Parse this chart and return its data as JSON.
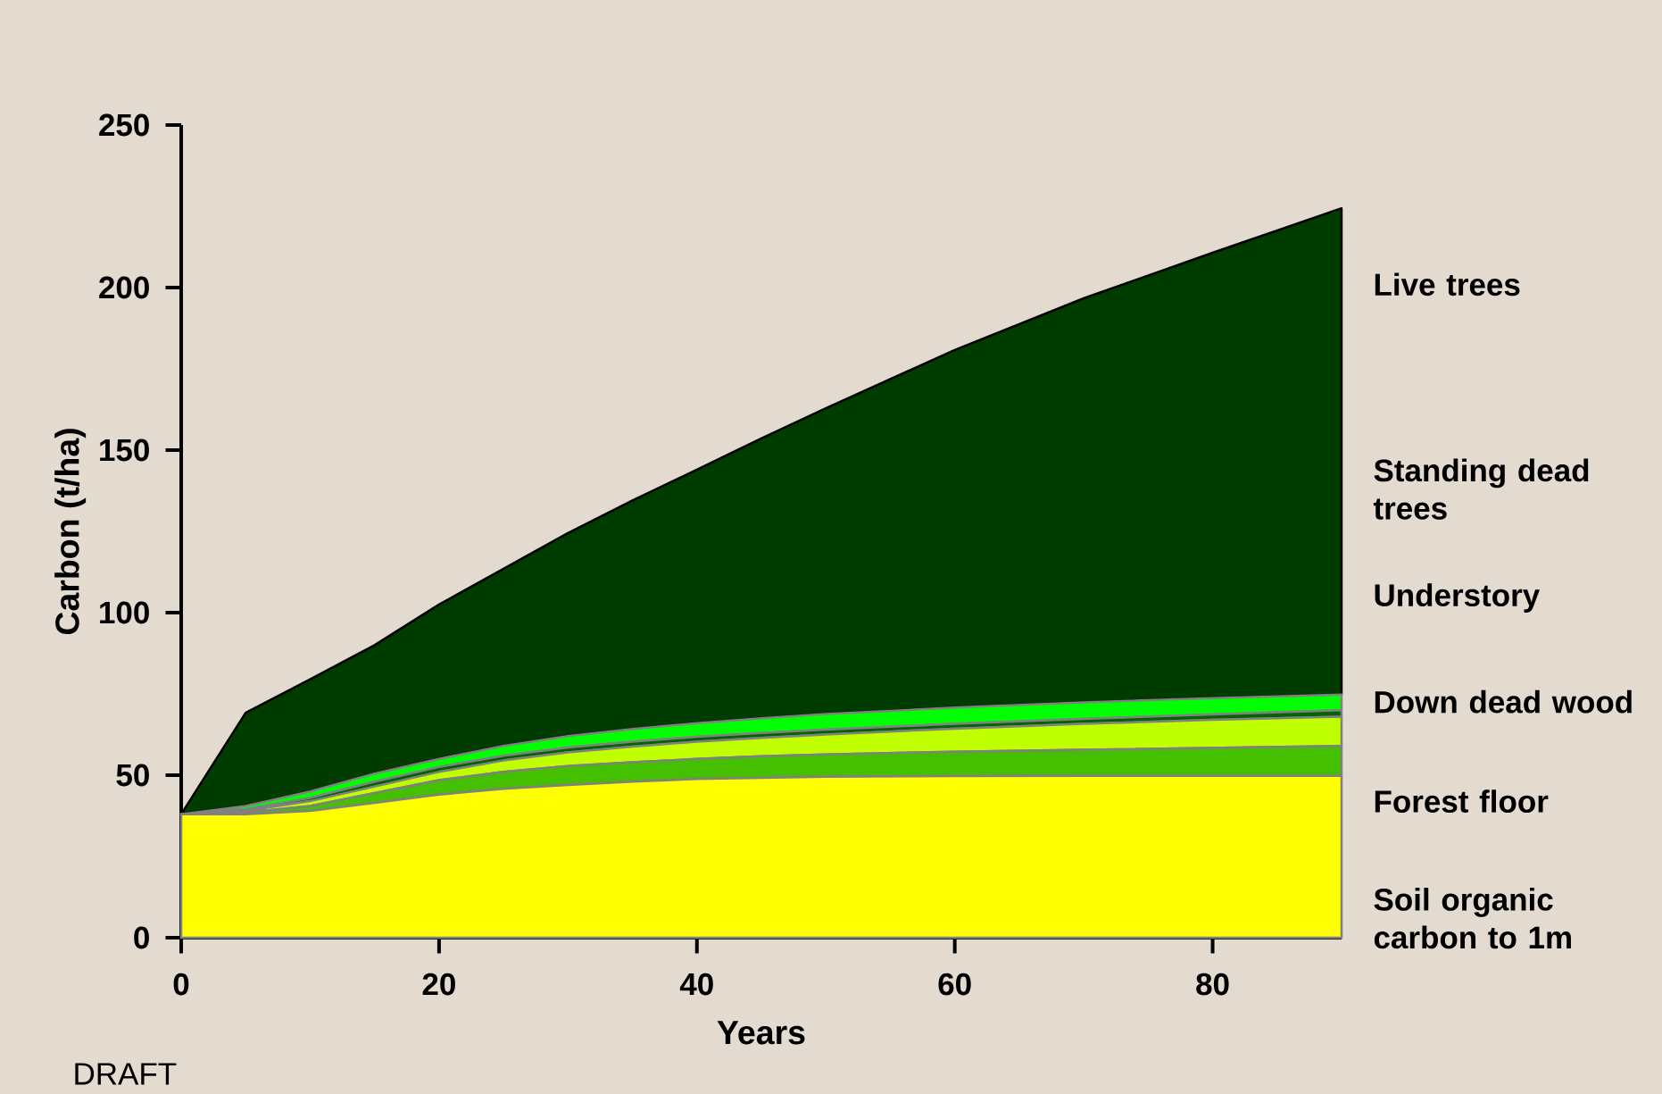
{
  "chart_data": {
    "type": "area",
    "stacked": true,
    "xlabel": "Years",
    "ylabel": "Carbon (t/ha)",
    "x": [
      0,
      5,
      10,
      15,
      20,
      25,
      30,
      35,
      40,
      45,
      50,
      60,
      70,
      80,
      90
    ],
    "xlim": [
      0,
      90
    ],
    "xticks": [
      0,
      20,
      40,
      60,
      80
    ],
    "ylim": [
      0,
      250
    ],
    "yticks": [
      0,
      50,
      100,
      150,
      200,
      250
    ],
    "series": [
      {
        "name": "Soil organic carbon to 1m",
        "color": "#ffff00",
        "values": [
          38,
          38,
          39,
          41.5,
          44,
          45.8,
          47,
          48,
          48.8,
          49.2,
          49.5,
          49.7,
          49.8,
          49.8,
          49.8
        ]
      },
      {
        "name": "Forest floor",
        "color": "#44c000",
        "values": [
          0,
          0.5,
          1.5,
          3,
          4.5,
          5.2,
          5.8,
          6,
          6.2,
          6.6,
          6.9,
          7.5,
          8,
          8.6,
          9.2
        ]
      },
      {
        "name": "Down dead wood",
        "color": "#bfff00",
        "values": [
          0,
          0.5,
          1.5,
          2,
          2.5,
          3.5,
          4.2,
          4.8,
          5.3,
          5.7,
          6.1,
          7.1,
          8,
          8.6,
          9
        ]
      },
      {
        "name": "Understory",
        "color": "#006400",
        "values": [
          0,
          0.5,
          1,
          1.5,
          1.5,
          1.5,
          1.5,
          1.5,
          1.5,
          1.5,
          1.5,
          1.5,
          1.5,
          1.7,
          2
        ]
      },
      {
        "name": "Standing dead trees",
        "color": "#00ff00",
        "values": [
          0,
          1,
          2,
          2.5,
          2.5,
          3,
          3.5,
          3.9,
          4.2,
          4.5,
          4.8,
          5,
          5.1,
          5,
          4.8
        ]
      },
      {
        "name": "Live trees",
        "color": "#003c00",
        "values": [
          0,
          28.7,
          34.5,
          39.5,
          47.5,
          54.5,
          62.5,
          70.3,
          78,
          86.1,
          94.1,
          110,
          124.3,
          137,
          149.6
        ]
      }
    ],
    "annotations": [
      "DRAFT"
    ]
  }
}
